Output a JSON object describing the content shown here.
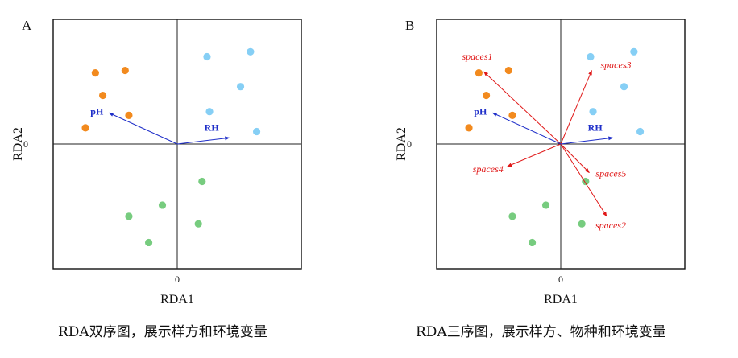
{
  "colors": {
    "orange": "#F28A1E",
    "blue": "#86CFF5",
    "green": "#77CC7F",
    "env_arrow": "#1F2FC9",
    "species_arrow": "#E01818",
    "frame": "#111111"
  },
  "captions": {
    "a": "RDA双序图，展示样方和环境变量",
    "b": "RDA三序图，展示样方、物种和环境变量"
  },
  "chart_data": [
    {
      "type": "scatter",
      "panel_label": "A",
      "xlabel": "RDA1",
      "ylabel": "RDA2",
      "x_tick": "0",
      "y_tick": "0",
      "xlim": [
        -1,
        1
      ],
      "ylim": [
        -1,
        1
      ],
      "grid": false,
      "zero_lines": true,
      "sites": [
        {
          "group": "orange",
          "x": -0.66,
          "y": 0.57
        },
        {
          "group": "orange",
          "x": -0.42,
          "y": 0.59
        },
        {
          "group": "orange",
          "x": -0.6,
          "y": 0.39
        },
        {
          "group": "orange",
          "x": -0.39,
          "y": 0.23
        },
        {
          "group": "orange",
          "x": -0.74,
          "y": 0.13
        },
        {
          "group": "blue",
          "x": 0.24,
          "y": 0.7
        },
        {
          "group": "blue",
          "x": 0.59,
          "y": 0.74
        },
        {
          "group": "blue",
          "x": 0.51,
          "y": 0.46
        },
        {
          "group": "blue",
          "x": 0.26,
          "y": 0.26
        },
        {
          "group": "blue",
          "x": 0.64,
          "y": 0.1
        },
        {
          "group": "green",
          "x": 0.2,
          "y": -0.3
        },
        {
          "group": "green",
          "x": -0.12,
          "y": -0.49
        },
        {
          "group": "green",
          "x": -0.39,
          "y": -0.58
        },
        {
          "group": "green",
          "x": 0.17,
          "y": -0.64
        },
        {
          "group": "green",
          "x": -0.23,
          "y": -0.79
        }
      ],
      "env_vectors": [
        {
          "label": "pH",
          "x": -0.55,
          "y": 0.25
        },
        {
          "label": "RH",
          "x": 0.42,
          "y": 0.05
        }
      ]
    },
    {
      "type": "scatter",
      "panel_label": "B",
      "xlabel": "RDA1",
      "ylabel": "RDA2",
      "x_tick": "0",
      "y_tick": "0",
      "xlim": [
        -1,
        1
      ],
      "ylim": [
        -1,
        1
      ],
      "grid": false,
      "zero_lines": true,
      "sites": [
        {
          "group": "orange",
          "x": -0.66,
          "y": 0.57
        },
        {
          "group": "orange",
          "x": -0.42,
          "y": 0.59
        },
        {
          "group": "orange",
          "x": -0.6,
          "y": 0.39
        },
        {
          "group": "orange",
          "x": -0.39,
          "y": 0.23
        },
        {
          "group": "orange",
          "x": -0.74,
          "y": 0.13
        },
        {
          "group": "blue",
          "x": 0.24,
          "y": 0.7
        },
        {
          "group": "blue",
          "x": 0.59,
          "y": 0.74
        },
        {
          "group": "blue",
          "x": 0.51,
          "y": 0.46
        },
        {
          "group": "blue",
          "x": 0.26,
          "y": 0.26
        },
        {
          "group": "blue",
          "x": 0.64,
          "y": 0.1
        },
        {
          "group": "green",
          "x": 0.2,
          "y": -0.3
        },
        {
          "group": "green",
          "x": -0.12,
          "y": -0.49
        },
        {
          "group": "green",
          "x": -0.39,
          "y": -0.58
        },
        {
          "group": "green",
          "x": 0.17,
          "y": -0.64
        },
        {
          "group": "green",
          "x": -0.23,
          "y": -0.79
        }
      ],
      "env_vectors": [
        {
          "label": "pH",
          "x": -0.55,
          "y": 0.25
        },
        {
          "label": "RH",
          "x": 0.42,
          "y": 0.05
        }
      ],
      "species_vectors": [
        {
          "label": "spaces1",
          "x": -0.62,
          "y": 0.58
        },
        {
          "label": "spaces3",
          "x": 0.25,
          "y": 0.59
        },
        {
          "label": "spaces4",
          "x": -0.43,
          "y": -0.18
        },
        {
          "label": "spaces5",
          "x": 0.23,
          "y": -0.23
        },
        {
          "label": "spaces2",
          "x": 0.37,
          "y": -0.58
        }
      ]
    }
  ]
}
